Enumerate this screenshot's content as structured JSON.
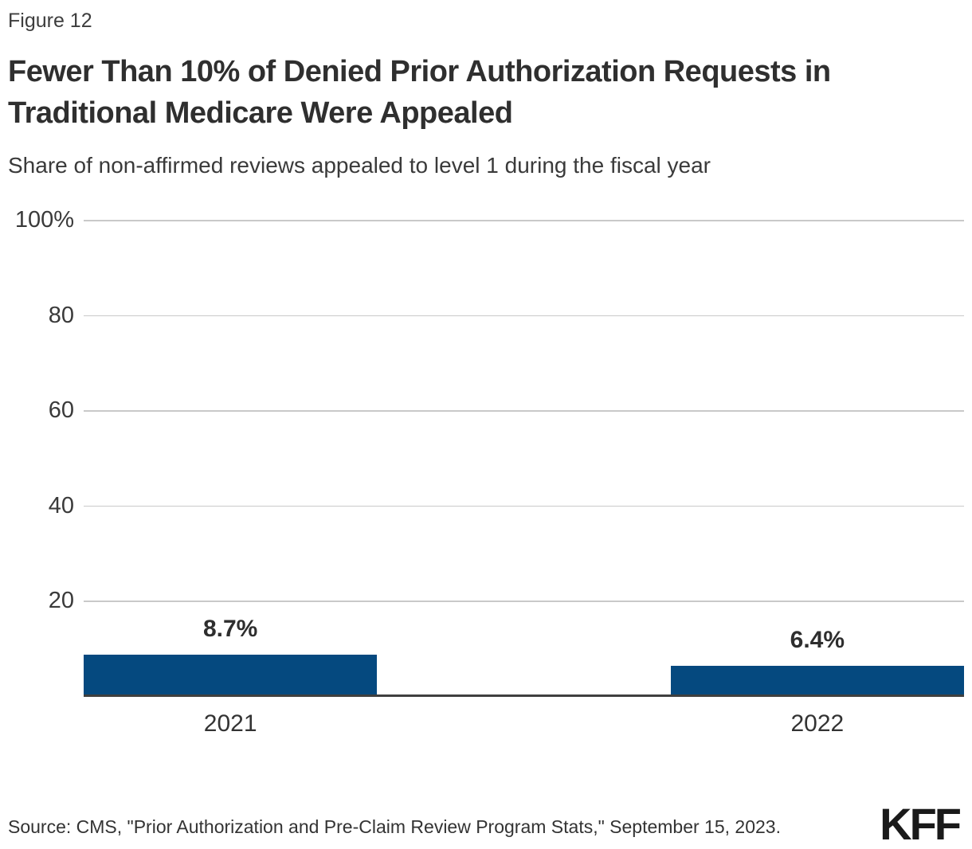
{
  "figure_label": "Figure 12",
  "title": "Fewer Than 10% of Denied Prior Authorization Requests in Traditional Medicare Were Appealed",
  "subtitle": "Share of non-affirmed reviews appealed to level 1 during the fiscal year",
  "source": "Source: CMS, \"Prior Authorization and Pre-Claim Review Program Stats,\" September 15, 2023.",
  "logo": "KFF",
  "colors": {
    "bar": "#05497F",
    "gridline": "#c9c9c9",
    "axis_line": "#3f3f3f",
    "title_text": "#2f2f2f",
    "label_text": "#333333"
  },
  "chart_data": {
    "type": "bar",
    "title": "Fewer Than 10% of Denied Prior Authorization Requests in Traditional Medicare Were Appealed",
    "subtitle": "Share of non-affirmed reviews appealed to level 1 during the fiscal year",
    "categories": [
      "2021",
      "2022"
    ],
    "values": [
      8.7,
      6.4
    ],
    "value_labels": [
      "8.7%",
      "6.4%"
    ],
    "xlabel": "",
    "ylabel": "",
    "ylim": [
      0,
      100
    ],
    "yticks": [
      100,
      80,
      60,
      40,
      20
    ],
    "ytick_labels": [
      "100%",
      "80",
      "60",
      "40",
      "20"
    ],
    "grid": "horizontal",
    "legend": "none",
    "bar_orientation": "vertical"
  }
}
